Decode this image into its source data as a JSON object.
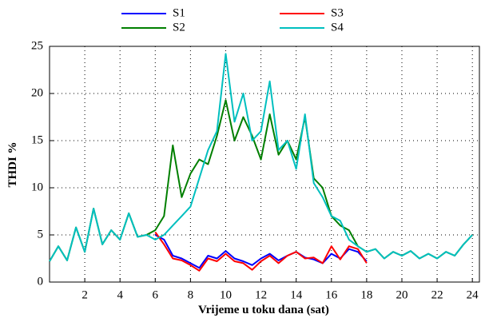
{
  "chart_data": {
    "type": "line",
    "xlabel": "Vrijeme u toku dana (sat)",
    "ylabel": "THDI %",
    "x": [
      0,
      0.5,
      1,
      1.5,
      2,
      2.5,
      3,
      3.5,
      4,
      4.5,
      5,
      5.5,
      6,
      6.5,
      7,
      7.5,
      8,
      8.5,
      9,
      9.5,
      10,
      10.5,
      11,
      11.5,
      12,
      12.5,
      13,
      13.5,
      14,
      14.5,
      15,
      15.5,
      16,
      16.5,
      17,
      17.5,
      18,
      18.5,
      19,
      19.5,
      20,
      20.5,
      21,
      21.5,
      22,
      22.5,
      23,
      23.5,
      24
    ],
    "series": [
      {
        "name": "S1",
        "color": "#0000ff",
        "values": [
          null,
          null,
          null,
          null,
          null,
          null,
          null,
          null,
          null,
          null,
          null,
          null,
          5.0,
          4.5,
          2.8,
          2.5,
          2.0,
          1.5,
          2.8,
          2.5,
          3.3,
          2.5,
          2.2,
          1.8,
          2.5,
          3.0,
          2.3,
          2.8,
          3.2,
          2.6,
          2.4,
          2.0,
          3.0,
          2.5,
          3.5,
          3.2,
          2.2,
          null,
          null,
          null,
          null,
          null,
          null,
          null,
          null,
          null,
          null,
          null,
          null
        ]
      },
      {
        "name": "S2",
        "color": "#007f00",
        "values": [
          2.2,
          3.8,
          2.3,
          5.8,
          3.2,
          7.8,
          4.0,
          5.5,
          4.5,
          7.3,
          4.8,
          5.0,
          5.5,
          7.0,
          14.5,
          9.0,
          11.5,
          13.0,
          12.5,
          15.5,
          19.3,
          15.0,
          17.5,
          15.5,
          13.0,
          17.8,
          13.5,
          15.0,
          13.0,
          17.5,
          11.0,
          10.0,
          7.0,
          6.0,
          5.5,
          3.8,
          3.2,
          3.5,
          2.5,
          3.2,
          2.8,
          3.3,
          2.5,
          3.0,
          2.5,
          3.2,
          2.8,
          4.0,
          5.0
        ]
      },
      {
        "name": "S3",
        "color": "#ff0000",
        "values": [
          null,
          null,
          null,
          null,
          null,
          null,
          null,
          null,
          null,
          null,
          null,
          null,
          5.3,
          4.0,
          2.5,
          2.3,
          1.8,
          1.2,
          2.5,
          2.2,
          3.0,
          2.2,
          2.0,
          1.3,
          2.2,
          2.8,
          2.0,
          2.8,
          3.2,
          2.5,
          2.6,
          2.0,
          3.8,
          2.4,
          3.8,
          3.5,
          2.0,
          null,
          null,
          null,
          null,
          null,
          null,
          null,
          null,
          null,
          null,
          null,
          null
        ]
      },
      {
        "name": "S4",
        "color": "#00bfbf",
        "values": [
          2.2,
          3.8,
          2.3,
          5.8,
          3.2,
          7.8,
          4.0,
          5.5,
          4.5,
          7.3,
          4.8,
          5.0,
          4.5,
          5.0,
          6.0,
          7.0,
          8.0,
          11.0,
          14.0,
          16.0,
          24.2,
          17.0,
          20.0,
          15.0,
          16.0,
          21.3,
          14.0,
          15.0,
          12.0,
          17.8,
          10.5,
          9.0,
          7.0,
          6.5,
          4.5,
          3.8,
          3.2,
          3.5,
          2.5,
          3.2,
          2.8,
          3.3,
          2.5,
          3.0,
          2.5,
          3.2,
          2.8,
          4.0,
          5.0
        ]
      }
    ],
    "xlim": [
      0,
      24.4
    ],
    "ylim": [
      0,
      25
    ],
    "xticks": [
      2,
      4,
      6,
      8,
      10,
      12,
      14,
      16,
      18,
      20,
      22,
      24
    ],
    "yticks": [
      0,
      5,
      10,
      15,
      20,
      25
    ],
    "grid": true
  }
}
